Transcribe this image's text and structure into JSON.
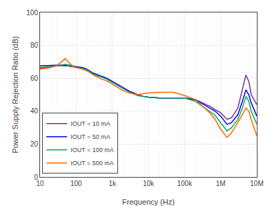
{
  "chart_data": {
    "type": "line",
    "xlabel": "Frequency (Hz)",
    "ylabel": "Power Supply Rejection Ratio (dB)",
    "log": "x",
    "grid": true,
    "legend": "lower left",
    "xlim": [
      10,
      10000000
    ],
    "ylim": [
      0,
      100
    ],
    "xticks": [
      10,
      100,
      {
        "value": 1000,
        "label": "1k"
      },
      {
        "value": 10000,
        "label": "10k"
      },
      {
        "value": 100000,
        "label": "100k"
      },
      {
        "value": 1000000,
        "label": "1M"
      },
      {
        "value": 10000000,
        "label": "10M"
      }
    ],
    "yticks": [
      0,
      20,
      40,
      60,
      80,
      100
    ],
    "x": [
      10,
      20,
      30,
      40,
      50,
      60,
      70,
      80,
      100,
      150,
      200,
      300,
      500,
      700,
      1000,
      2000,
      3000,
      5000,
      7000,
      10000,
      20000,
      50000,
      100000,
      200000,
      500000,
      700000,
      1000000,
      1500000,
      2000000,
      3000000,
      4000000,
      5000000,
      6000000,
      7000000,
      10000000
    ],
    "series": [
      {
        "name": "IOUT = 10 mA",
        "color": "#7030A0",
        "values": [
          66,
          67,
          67.5,
          67.5,
          67.5,
          67.5,
          67,
          67,
          66.5,
          66,
          65,
          63,
          61,
          60,
          58,
          54,
          52,
          50,
          49,
          48.5,
          48,
          48,
          48,
          47,
          43,
          41,
          39,
          35,
          36,
          42,
          53,
          62,
          58,
          50,
          44
        ]
      },
      {
        "name": "IOUT = 50 mA",
        "color": "#0000FF",
        "values": [
          67.5,
          68,
          68,
          68,
          68,
          68,
          68,
          67.5,
          67,
          66.5,
          65.5,
          63,
          61,
          60,
          58,
          54,
          52,
          50,
          49,
          48.5,
          48,
          48,
          48,
          47,
          42,
          40,
          37,
          32,
          33,
          38,
          46,
          53,
          50,
          45,
          37
        ]
      },
      {
        "name": "IOUT = 100 mA",
        "color": "#00B050",
        "values": [
          66.5,
          67,
          67.5,
          68,
          68.5,
          68,
          67.5,
          67,
          66.5,
          66,
          65,
          62.5,
          60.5,
          59.5,
          57.5,
          53.5,
          51.5,
          49.5,
          49,
          48.5,
          48,
          48,
          48,
          46,
          40,
          37.5,
          33,
          28,
          30,
          35,
          42,
          49,
          46,
          40,
          32
        ]
      },
      {
        "name": "IOUT = 500 mA",
        "color": "#FF6600",
        "values": [
          65.5,
          66.5,
          68,
          70,
          72,
          70,
          68.5,
          67.5,
          66.5,
          65.5,
          64.5,
          62,
          59.5,
          58.5,
          56.5,
          52.5,
          51,
          50,
          50.5,
          51,
          51.5,
          51.5,
          49.5,
          47,
          39,
          35,
          29,
          24,
          27,
          33,
          38,
          42,
          40,
          35,
          25
        ]
      }
    ]
  }
}
